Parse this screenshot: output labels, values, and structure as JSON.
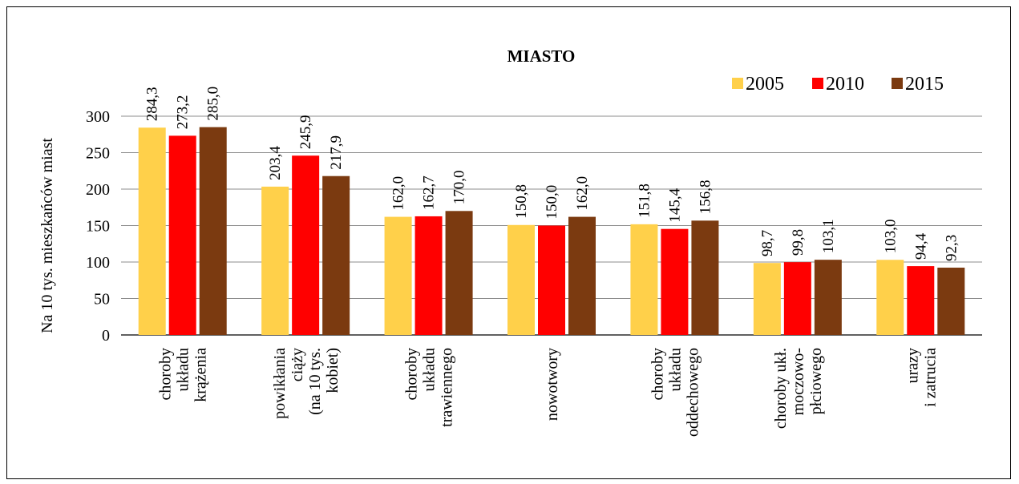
{
  "chart_data": {
    "type": "bar",
    "title": "MIASTO",
    "ylabel": "Na 10 tys. mieszkańców miast",
    "xlabel": "",
    "ylim": [
      0,
      300
    ],
    "yticks": [
      "0",
      "50",
      "100",
      "150",
      "200",
      "250",
      "300"
    ],
    "grid": true,
    "legend_position": "top-right",
    "categories": [
      [
        "choroby",
        "układu",
        "krążenia"
      ],
      [
        "powikłania",
        "ciąży",
        "(na 10 tys.",
        "kobiet)"
      ],
      [
        "choroby",
        "układu",
        "trawiennego"
      ],
      [
        "nowotwory"
      ],
      [
        "choroby",
        "układu",
        "oddechowego"
      ],
      [
        "choroby ukł.",
        "moczowo-",
        "płciowego"
      ],
      [
        "urazy",
        "i zatrucia"
      ]
    ],
    "series": [
      {
        "name": "2005",
        "color": "#FFD04A",
        "values": [
          284.3,
          203.4,
          162.0,
          150.8,
          151.8,
          98.7,
          103.0
        ],
        "labels": [
          "284,3",
          "203,4",
          "162,0",
          "150,8",
          "151,8",
          "98,7",
          "103,0"
        ]
      },
      {
        "name": "2010",
        "color": "#FF0000",
        "values": [
          273.2,
          245.9,
          162.7,
          150.0,
          145.4,
          99.8,
          94.4
        ],
        "labels": [
          "273,2",
          "245,9",
          "162,7",
          "150,0",
          "145,4",
          "99,8",
          "94,4"
        ]
      },
      {
        "name": "2015",
        "color": "#7B3A10",
        "values": [
          285.0,
          217.9,
          170.0,
          162.0,
          156.8,
          103.1,
          92.3
        ],
        "labels": [
          "285,0",
          "217,9",
          "170,0",
          "162,0",
          "156,8",
          "103,1",
          "92,3"
        ]
      }
    ]
  }
}
